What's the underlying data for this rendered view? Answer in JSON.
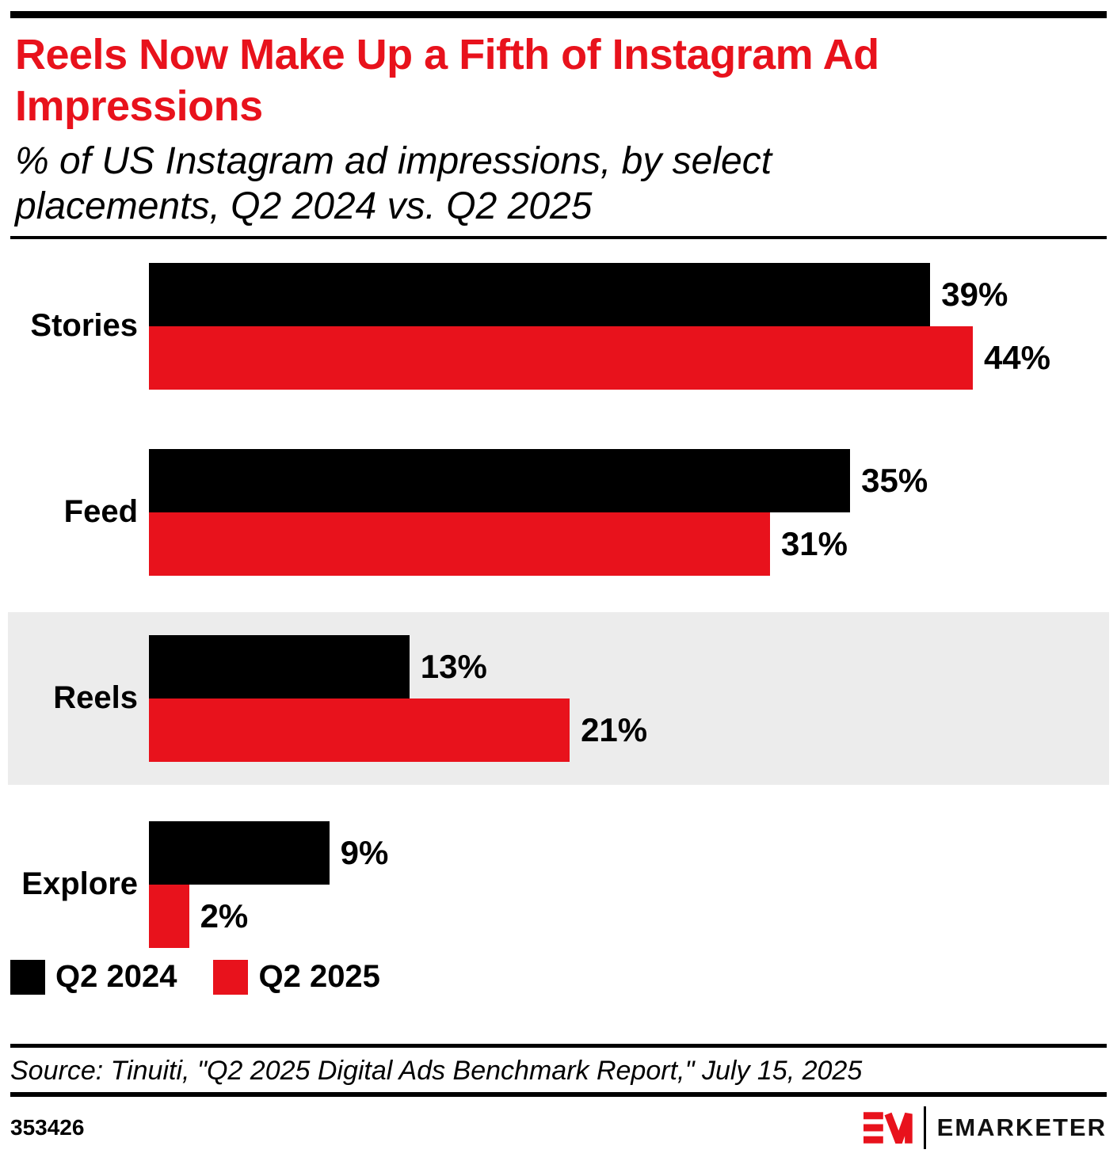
{
  "header": {
    "title": "Reels Now Make Up a Fifth of Instagram Ad Impressions",
    "subtitle": "% of US Instagram ad impressions, by select placements, Q2 2024 vs. Q2 2025"
  },
  "chart_data": {
    "type": "bar",
    "orientation": "horizontal",
    "title": "Reels Now Make Up a Fifth of Instagram Ad Impressions",
    "subtitle": "% of US Instagram ad impressions, by select placements, Q2 2024 vs. Q2 2025",
    "categories": [
      "Stories",
      "Feed",
      "Reels",
      "Explore"
    ],
    "series": [
      {
        "name": "Q2 2024",
        "color": "#000000",
        "values": [
          39,
          35,
          13,
          9
        ],
        "labels": [
          "39%",
          "35%",
          "13%",
          "9%"
        ]
      },
      {
        "name": "Q2 2025",
        "color": "#E8121C",
        "values": [
          44,
          31,
          21,
          2
        ],
        "labels": [
          "44%",
          "31%",
          "21%",
          "2%"
        ]
      }
    ],
    "value_unit": "%",
    "xlim": [
      0,
      45
    ],
    "grid": false,
    "legend_position": "bottom-left",
    "highlighted_category": "Reels",
    "highlight_color": "#ECECEC"
  },
  "footer": {
    "source": "Source: Tinuiti, \"Q2 2025 Digital Ads Benchmark Report,\" July 15, 2025",
    "chart_id": "353426",
    "brand": "EMARKETER"
  },
  "colors": {
    "accent_red": "#E8121C",
    "bar_black": "#000000",
    "highlight_gray": "#ECECEC",
    "rule_black": "#000000"
  }
}
